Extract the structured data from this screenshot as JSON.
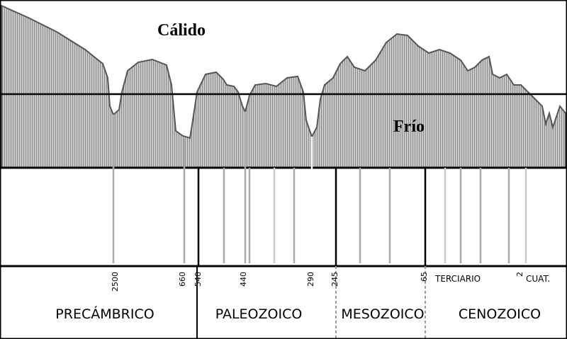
{
  "annotations": {
    "warm": "Cálido",
    "cold": "Frío"
  },
  "ticks": [
    2500,
    660,
    540,
    440,
    290,
    245,
    65,
    2
  ],
  "periods": {
    "tertiary": "TERCIARIO",
    "quaternary": "CUAT."
  },
  "eras": [
    "PRECÁMBRICO",
    "PALEOZOICO",
    "MESOZOICO",
    "CENOZOICO"
  ]
}
